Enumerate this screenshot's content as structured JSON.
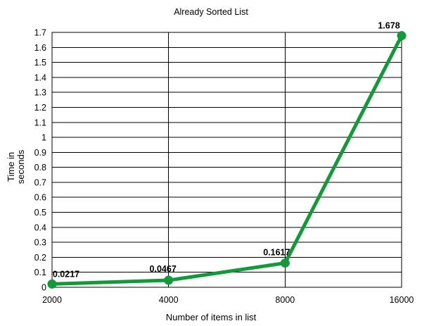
{
  "chart_data": {
    "type": "line",
    "title": "Already Sorted List",
    "xlabel": "Number of items in list",
    "ylabel_lines": [
      "Time in",
      "seconds"
    ],
    "categories": [
      "2000",
      "4000",
      "8000",
      "16000"
    ],
    "series": [
      {
        "name": "Already Sorted List",
        "values": [
          0.0217,
          0.0467,
          0.1617,
          1.678
        ],
        "labels": [
          "0.0217",
          "0.0467",
          "0.1617",
          "1.678"
        ],
        "color": "#13993a"
      }
    ],
    "ylim": [
      0,
      1.7
    ],
    "ytick_step": 0.1,
    "yticks": [
      "0",
      "0.1",
      "0.2",
      "0.3",
      "0.4",
      "0.5",
      "0.6",
      "0.7",
      "0.8",
      "0.9",
      "1",
      "1.1",
      "1.2",
      "1.3",
      "1.4",
      "1.5",
      "1.6",
      "1.7"
    ],
    "grid": true
  }
}
